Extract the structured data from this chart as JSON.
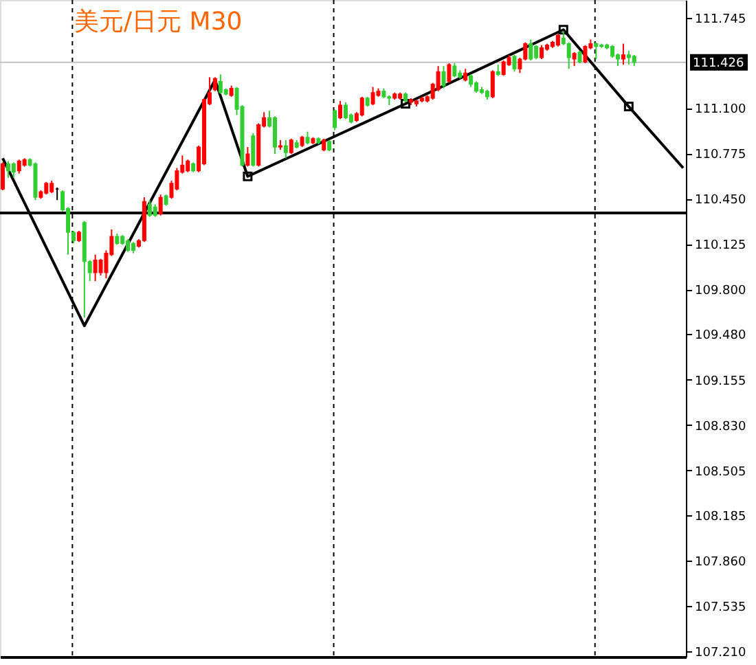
{
  "chart_data": {
    "type": "candlestick",
    "title": "美元/日元 M30",
    "categories": [
      null,
      null,
      null,
      null,
      null,
      null,
      null,
      null,
      null,
      null,
      null,
      null,
      null,
      null,
      null,
      null,
      null,
      null,
      null,
      null,
      null,
      null,
      null,
      null,
      null,
      null,
      null,
      null,
      null,
      null,
      null,
      null,
      null,
      null,
      null,
      null,
      null,
      null,
      null,
      null,
      null,
      null,
      null,
      null,
      null,
      null,
      null,
      null,
      null,
      null,
      null,
      null,
      null,
      null,
      null,
      null,
      null,
      null,
      null,
      null,
      null,
      null,
      null,
      null,
      null,
      null,
      null,
      null,
      null,
      null,
      null,
      null,
      null,
      null,
      null,
      null,
      null,
      null,
      null,
      null,
      null,
      null,
      null,
      null,
      null,
      null,
      null,
      null,
      null,
      null,
      null,
      null,
      null,
      null,
      null,
      null,
      null,
      null,
      null,
      null,
      null,
      null,
      null,
      null,
      null,
      null,
      null,
      null,
      null,
      null,
      null,
      null,
      null,
      null,
      null,
      null,
      null,
      null,
      null,
      null,
      null,
      null,
      null,
      null,
      null,
      null
    ],
    "ohlc": [
      [
        110.52,
        110.71,
        110.51,
        110.7
      ],
      [
        110.7,
        110.72,
        110.6,
        110.65
      ],
      [
        110.7,
        110.71,
        110.6,
        110.64
      ],
      [
        110.65,
        110.73,
        110.63,
        110.72
      ],
      [
        110.69,
        110.74,
        110.68,
        110.73
      ],
      [
        110.73,
        110.74,
        110.68,
        110.69
      ],
      [
        110.7,
        110.71,
        110.44,
        110.46
      ],
      [
        110.46,
        110.51,
        110.45,
        110.5
      ],
      [
        110.49,
        110.57,
        110.48,
        110.56
      ],
      [
        110.5,
        110.58,
        110.49,
        110.56
      ],
      [
        110.52,
        110.53,
        110.44,
        110.52
      ],
      [
        110.5,
        110.51,
        110.36,
        110.37
      ],
      [
        110.38,
        110.39,
        110.05,
        110.21
      ],
      [
        110.21,
        110.22,
        110.13,
        110.15
      ],
      [
        110.15,
        110.22,
        110.14,
        110.21
      ],
      [
        110.28,
        110.29,
        109.6,
        110.0
      ],
      [
        110.0,
        110.01,
        109.86,
        109.92
      ],
      [
        109.92,
        110.05,
        109.86,
        110.01
      ],
      [
        109.92,
        110.02,
        109.9,
        110.01
      ],
      [
        109.92,
        110.08,
        109.88,
        110.06
      ],
      [
        110.05,
        110.23,
        110.04,
        110.18
      ],
      [
        110.18,
        110.2,
        110.12,
        110.13
      ],
      [
        110.18,
        110.19,
        110.12,
        110.13
      ],
      [
        110.15,
        110.16,
        110.07,
        110.08
      ],
      [
        110.13,
        110.14,
        110.06,
        110.08
      ],
      [
        110.11,
        110.16,
        110.1,
        110.15
      ],
      [
        110.15,
        110.46,
        110.14,
        110.43
      ],
      [
        110.41,
        110.44,
        110.32,
        110.33
      ],
      [
        110.39,
        110.41,
        110.32,
        110.33
      ],
      [
        110.34,
        110.48,
        110.33,
        110.46
      ],
      [
        110.47,
        110.48,
        110.4,
        110.41
      ],
      [
        110.46,
        110.58,
        110.45,
        110.56
      ],
      [
        110.52,
        110.67,
        110.51,
        110.65
      ],
      [
        110.64,
        110.76,
        110.63,
        110.69
      ],
      [
        110.65,
        110.73,
        110.64,
        110.72
      ],
      [
        110.7,
        110.71,
        110.64,
        110.65
      ],
      [
        110.65,
        110.83,
        110.64,
        110.82
      ],
      [
        110.7,
        111.17,
        110.69,
        111.16
      ],
      [
        111.13,
        111.32,
        111.12,
        111.21
      ],
      [
        111.23,
        111.32,
        111.22,
        111.31
      ],
      [
        111.29,
        111.34,
        111.2,
        111.21
      ],
      [
        111.23,
        111.24,
        111.19,
        111.2
      ],
      [
        111.19,
        111.26,
        111.18,
        111.24
      ],
      [
        111.24,
        111.25,
        111.05,
        111.09
      ],
      [
        111.11,
        111.12,
        110.68,
        110.69
      ],
      [
        110.69,
        110.82,
        110.68,
        110.77
      ],
      [
        110.9,
        110.92,
        110.68,
        110.69
      ],
      [
        110.69,
        110.99,
        110.68,
        110.98
      ],
      [
        110.97,
        111.07,
        110.96,
        111.03
      ],
      [
        111.03,
        111.08,
        110.96,
        110.97
      ],
      [
        111.03,
        111.04,
        110.77,
        110.82
      ],
      [
        110.82,
        110.87,
        110.8,
        110.83
      ],
      [
        110.83,
        110.87,
        110.74,
        110.78
      ],
      [
        110.78,
        110.88,
        110.77,
        110.87
      ],
      [
        110.85,
        110.87,
        110.81,
        110.82
      ],
      [
        110.83,
        110.9,
        110.82,
        110.89
      ],
      [
        110.89,
        110.93,
        110.84,
        110.85
      ],
      [
        110.85,
        110.89,
        110.84,
        110.88
      ],
      [
        110.88,
        110.89,
        110.84,
        110.85
      ],
      [
        110.8,
        110.88,
        110.79,
        110.87
      ],
      [
        110.86,
        110.87,
        110.79,
        110.8
      ],
      [
        111.08,
        111.09,
        110.94,
        110.96
      ],
      [
        111.03,
        111.15,
        111.02,
        111.12
      ],
      [
        111.12,
        111.14,
        111.02,
        111.03
      ],
      [
        111.05,
        111.06,
        110.99,
        111.0
      ],
      [
        111.01,
        111.07,
        111.0,
        111.06
      ],
      [
        111.05,
        111.18,
        111.04,
        111.17
      ],
      [
        111.17,
        111.18,
        111.11,
        111.12
      ],
      [
        111.13,
        111.25,
        111.12,
        111.21
      ],
      [
        111.19,
        111.24,
        111.18,
        111.22
      ],
      [
        111.22,
        111.24,
        111.17,
        111.18
      ],
      [
        111.18,
        111.19,
        111.12,
        111.17
      ],
      [
        111.17,
        111.21,
        111.16,
        111.2
      ],
      [
        111.17,
        111.21,
        111.16,
        111.2
      ],
      [
        111.2,
        111.21,
        111.14,
        111.15
      ],
      [
        111.14,
        111.17,
        111.12,
        111.16
      ],
      [
        111.13,
        111.16,
        111.11,
        111.15
      ],
      [
        111.15,
        111.18,
        111.14,
        111.17
      ],
      [
        111.15,
        111.19,
        111.14,
        111.18
      ],
      [
        111.17,
        111.28,
        111.16,
        111.27
      ],
      [
        111.23,
        111.4,
        111.22,
        111.36
      ],
      [
        111.36,
        111.4,
        111.24,
        111.26
      ],
      [
        111.29,
        111.42,
        111.28,
        111.41
      ],
      [
        111.4,
        111.42,
        111.32,
        111.33
      ],
      [
        111.35,
        111.37,
        111.31,
        111.32
      ],
      [
        111.3,
        111.38,
        111.29,
        111.35
      ],
      [
        111.33,
        111.34,
        111.25,
        111.27
      ],
      [
        111.28,
        111.29,
        111.21,
        111.22
      ],
      [
        111.23,
        111.25,
        111.2,
        111.21
      ],
      [
        111.22,
        111.23,
        111.16,
        111.18
      ],
      [
        111.18,
        111.37,
        111.17,
        111.36
      ],
      [
        111.36,
        111.41,
        111.33,
        111.34
      ],
      [
        111.34,
        111.44,
        111.33,
        111.43
      ],
      [
        111.41,
        111.48,
        111.4,
        111.46
      ],
      [
        111.47,
        111.48,
        111.36,
        111.38
      ],
      [
        111.38,
        111.46,
        111.35,
        111.45
      ],
      [
        111.45,
        111.57,
        111.44,
        111.56
      ],
      [
        111.56,
        111.59,
        111.44,
        111.45
      ],
      [
        111.54,
        111.55,
        111.45,
        111.46
      ],
      [
        111.46,
        111.55,
        111.45,
        111.53
      ],
      [
        111.52,
        111.56,
        111.51,
        111.55
      ],
      [
        111.54,
        111.58,
        111.53,
        111.57
      ],
      [
        111.55,
        111.63,
        111.54,
        111.62
      ],
      [
        111.6,
        111.65,
        111.55,
        111.56
      ],
      [
        111.56,
        111.57,
        111.38,
        111.46
      ],
      [
        111.45,
        111.5,
        111.4,
        111.49
      ],
      [
        111.5,
        111.51,
        111.42,
        111.43
      ],
      [
        111.43,
        111.55,
        111.42,
        111.54
      ],
      [
        111.53,
        111.59,
        111.52,
        111.56
      ],
      [
        111.56,
        111.57,
        111.45,
        111.54
      ],
      [
        111.55,
        111.56,
        111.53,
        111.54
      ],
      [
        111.55,
        111.56,
        111.52,
        111.53
      ],
      [
        111.54,
        111.55,
        111.46,
        111.47
      ],
      [
        111.48,
        111.49,
        111.4,
        111.45
      ],
      [
        111.45,
        111.56,
        111.41,
        111.48
      ],
      [
        111.48,
        111.51,
        111.41,
        111.46
      ],
      [
        111.47,
        111.48,
        111.4,
        111.426
      ],
      null,
      null,
      null,
      null,
      null,
      null,
      null,
      null,
      null
    ],
    "colors": [
      "#ff0000",
      "#32cd32",
      "#32cd32",
      "#ff0000",
      "#ff0000",
      "#32cd32",
      "#32cd32",
      "#ff0000",
      "#ff0000",
      "#ff0000",
      "#000000",
      "#32cd32",
      "#32cd32",
      "#32cd32",
      "#ff0000",
      "#32cd32",
      "#32cd32",
      "#ff0000",
      "#ff0000",
      "#ff0000",
      "#ff0000",
      "#32cd32",
      "#32cd32",
      "#32cd32",
      "#32cd32",
      "#ff0000",
      "#ff0000",
      "#32cd32",
      "#32cd32",
      "#ff0000",
      "#32cd32",
      "#ff0000",
      "#ff0000",
      "#ff0000",
      "#ff0000",
      "#32cd32",
      "#ff0000",
      "#ff0000",
      "#ff0000",
      "#ff0000",
      "#32cd32",
      "#32cd32",
      "#ff0000",
      "#32cd32",
      "#32cd32",
      "#ff0000",
      "#32cd32",
      "#ff0000",
      "#ff0000",
      "#32cd32",
      "#32cd32",
      "#ff0000",
      "#32cd32",
      "#ff0000",
      "#32cd32",
      "#ff0000",
      "#32cd32",
      "#ff0000",
      "#32cd32",
      "#ff0000",
      "#32cd32",
      "#32cd32",
      "#ff0000",
      "#32cd32",
      "#32cd32",
      "#ff0000",
      "#ff0000",
      "#32cd32",
      "#ff0000",
      "#ff0000",
      "#32cd32",
      "#32cd32",
      "#ff0000",
      "#ff0000",
      "#32cd32",
      "#ff0000",
      "#ff0000",
      "#ff0000",
      "#ff0000",
      "#ff0000",
      "#ff0000",
      "#32cd32",
      "#ff0000",
      "#32cd32",
      "#32cd32",
      "#ff0000",
      "#32cd32",
      "#32cd32",
      "#32cd32",
      "#32cd32",
      "#ff0000",
      "#32cd32",
      "#ff0000",
      "#ff0000",
      "#32cd32",
      "#ff0000",
      "#ff0000",
      "#32cd32",
      "#32cd32",
      "#ff0000",
      "#ff0000",
      "#ff0000",
      "#ff0000",
      "#32cd32",
      "#32cd32",
      "#ff0000",
      "#32cd32",
      "#ff0000",
      "#ff0000",
      "#32cd32",
      "#32cd32",
      "#32cd32",
      "#32cd32",
      "#32cd32",
      "#ff0000",
      "#32cd32",
      "#32cd32",
      null,
      null,
      null,
      null,
      null,
      null,
      null,
      null,
      null
    ],
    "series": [
      {
        "type": "line",
        "color": "#000000",
        "values": [
          110.74,
          null,
          null,
          null,
          null,
          null,
          null,
          null,
          null,
          null,
          null,
          null,
          null,
          null,
          null,
          109.54,
          null,
          null,
          null,
          null,
          null,
          null,
          null,
          null,
          null,
          null,
          null,
          null,
          null,
          null,
          null,
          null,
          null,
          null,
          null,
          null,
          null,
          null,
          null,
          111.3,
          null,
          null,
          null,
          null,
          null,
          110.61,
          null,
          null,
          null,
          null,
          null,
          null,
          null,
          null,
          null,
          null,
          null,
          null,
          null,
          null,
          null,
          null,
          null,
          null,
          null,
          null,
          null,
          null,
          null,
          null,
          null,
          null,
          null,
          null,
          111.13,
          null,
          null,
          null,
          null,
          null,
          null,
          null,
          null,
          null,
          null,
          null,
          null,
          null,
          null,
          null,
          null,
          null,
          null,
          null,
          null,
          null,
          null,
          null,
          null,
          null,
          null,
          null,
          null,
          111.66,
          null,
          null,
          null,
          null,
          null,
          null,
          null,
          null,
          null,
          null,
          null,
          111.11,
          null,
          null,
          null,
          null,
          null,
          null,
          null,
          null,
          null,
          110.67
        ]
      },
      {
        "type": "scatter",
        "marker": "square",
        "color": "#000000",
        "values": [
          null,
          null,
          null,
          null,
          null,
          null,
          null,
          null,
          null,
          null,
          null,
          null,
          null,
          null,
          null,
          null,
          null,
          null,
          null,
          null,
          null,
          null,
          null,
          null,
          null,
          null,
          null,
          null,
          null,
          null,
          null,
          null,
          null,
          null,
          null,
          null,
          null,
          null,
          null,
          null,
          null,
          null,
          null,
          null,
          null,
          110.61,
          null,
          null,
          null,
          null,
          null,
          null,
          null,
          null,
          null,
          null,
          null,
          null,
          null,
          null,
          null,
          null,
          null,
          null,
          null,
          null,
          null,
          null,
          null,
          null,
          null,
          null,
          null,
          null,
          111.13,
          null,
          null,
          null,
          null,
          null,
          null,
          null,
          null,
          null,
          null,
          null,
          null,
          null,
          null,
          null,
          null,
          null,
          null,
          null,
          null,
          null,
          null,
          null,
          null,
          null,
          null,
          null,
          null,
          111.66,
          null,
          null,
          null,
          null,
          null,
          null,
          null,
          null,
          null,
          null,
          null,
          111.11,
          null,
          null,
          null,
          null,
          null,
          null,
          null,
          null,
          null,
          null
        ]
      }
    ],
    "ref_lines": [
      {
        "axis": "y",
        "value": 110.348,
        "color": "#000000"
      },
      {
        "axis": "y",
        "value": 111.426,
        "label": "111.426",
        "color": "#c0c0c0"
      }
    ],
    "ylim": [
      107.17,
      111.873
    ],
    "yticks": [
      111.745,
      {
        "value": 111.1,
        "label": "111.100"
      },
      110.775,
      {
        "value": 110.45,
        "label": "110.450"
      },
      110.125,
      {
        "value": 109.8,
        "label": "109.800"
      },
      {
        "value": 109.48,
        "label": "109.480"
      },
      109.155,
      {
        "value": 108.83,
        "label": "108.830"
      },
      108.505,
      108.185,
      {
        "value": 107.86,
        "label": "107.860"
      },
      107.535,
      {
        "value": 107.21,
        "label": "107.210"
      }
    ],
    "tick_labels": "y",
    "grid": false
  }
}
